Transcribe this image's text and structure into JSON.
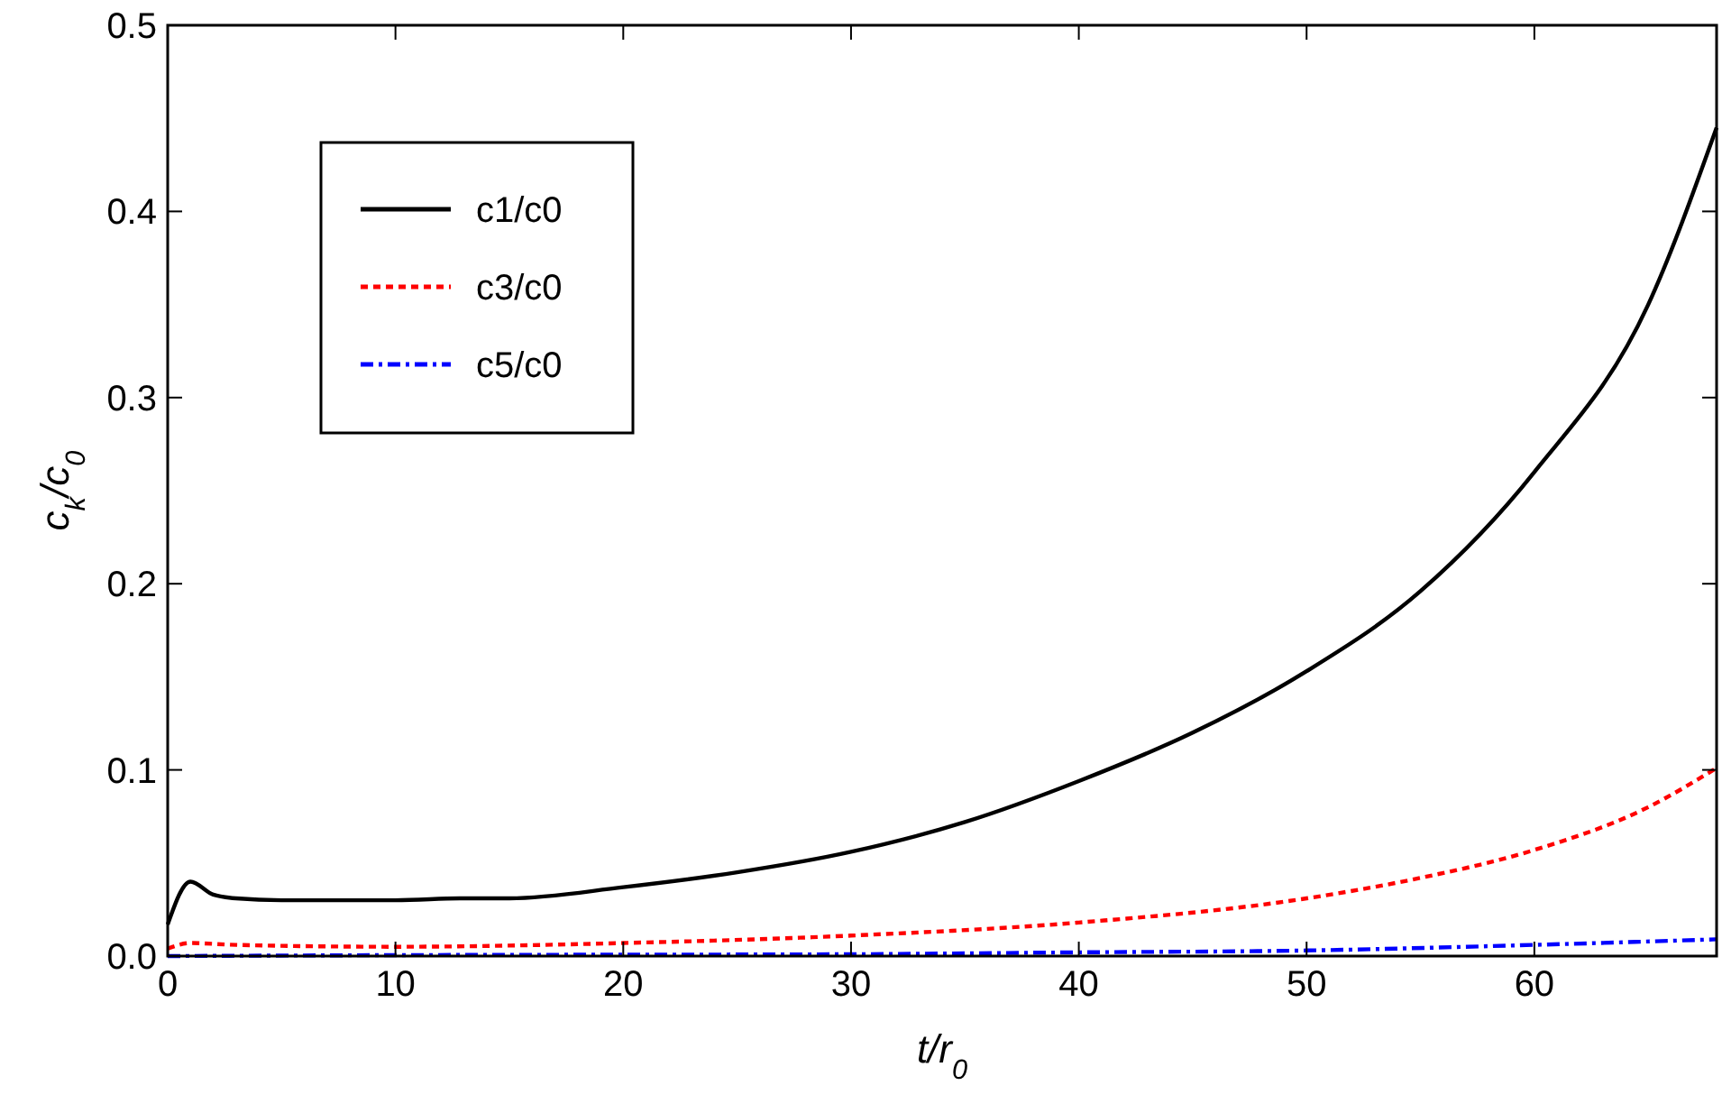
{
  "chart_data": {
    "type": "line",
    "xlabel": "t/r$_{0}$",
    "ylabel": "c$_{k}$/c$_{0}$",
    "xlim": [
      0,
      68
    ],
    "ylim": [
      0,
      0.5
    ],
    "xticks": [
      0,
      10,
      20,
      30,
      40,
      50,
      60
    ],
    "yticks": [
      {
        "value": 0,
        "label": "0.0"
      },
      0.1,
      0.2,
      0.3,
      0.4,
      0.5
    ],
    "legend": "top left",
    "grid": false,
    "series": [
      {
        "name": "c1/c0",
        "color": "#000000",
        "line_style": "solid",
        "x": [
          0,
          1,
          2,
          3,
          5,
          10,
          13,
          15,
          20,
          25,
          30,
          35,
          40,
          45,
          50,
          55,
          60,
          65,
          68
        ],
        "values": [
          0.017,
          0.04,
          0.033,
          0.031,
          0.03,
          0.03,
          0.031,
          0.031,
          0.037,
          0.045,
          0.056,
          0.072,
          0.094,
          0.12,
          0.153,
          0.196,
          0.26,
          0.35,
          0.445
        ]
      },
      {
        "name": "c3/c0",
        "color": "#ff0000",
        "line_style": "dashed",
        "x": [
          0,
          1,
          3,
          10,
          20,
          30,
          40,
          50,
          55,
          60,
          65,
          68
        ],
        "values": [
          0.004,
          0.007,
          0.006,
          0.005,
          0.007,
          0.011,
          0.018,
          0.031,
          0.042,
          0.057,
          0.08,
          0.101
        ]
      },
      {
        "name": "c5/c0",
        "color": "#0000ff",
        "line_style": "dashdot",
        "x": [
          0,
          10,
          30,
          40,
          50,
          60,
          68
        ],
        "values": [
          0,
          0.0005,
          0.001,
          0.002,
          0.003,
          0.006,
          0.009
        ]
      }
    ]
  }
}
